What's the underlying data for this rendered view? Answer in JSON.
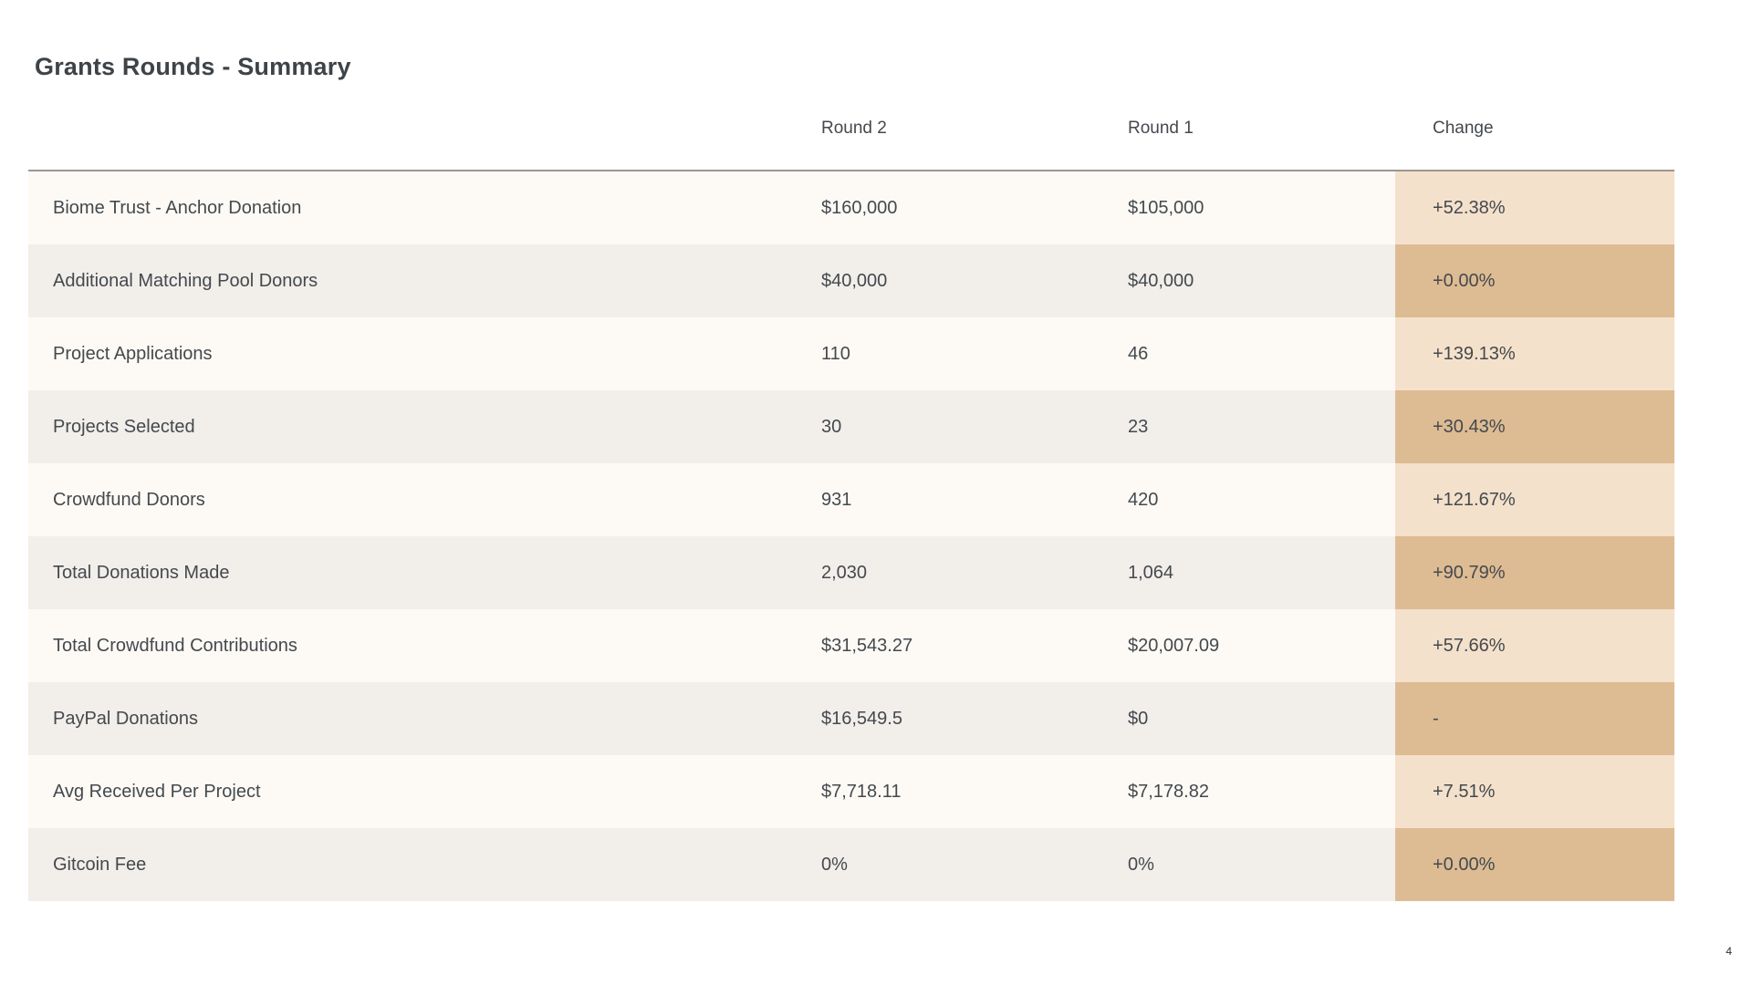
{
  "page": {
    "title": "Grants Rounds - Summary",
    "page_number": "4"
  },
  "table": {
    "headers": [
      "Round 2",
      "Round 1",
      "Change"
    ],
    "rows": [
      {
        "label": "Biome Trust - Anchor Donation",
        "round2": "$160,000",
        "round1": "$105,000",
        "change": "+52.38%"
      },
      {
        "label": "Additional Matching Pool Donors",
        "round2": "$40,000",
        "round1": "$40,000",
        "change": "+0.00%"
      },
      {
        "label": "Project Applications",
        "round2": "110",
        "round1": "46",
        "change": "+139.13%"
      },
      {
        "label": "Projects Selected",
        "round2": "30",
        "round1": "23",
        "change": "+30.43%"
      },
      {
        "label": "Crowdfund Donors",
        "round2": "931",
        "round1": "420",
        "change": "+121.67%"
      },
      {
        "label": "Total Donations Made",
        "round2": "2,030",
        "round1": "1,064",
        "change": "+90.79%"
      },
      {
        "label": "Total Crowdfund Contributions",
        "round2": "$31,543.27",
        "round1": "$20,007.09",
        "change": "+57.66%"
      },
      {
        "label": "PayPal Donations",
        "round2": "$16,549.5",
        "round1": "$0",
        "change": "-"
      },
      {
        "label": "Avg Received Per Project",
        "round2": "$7,718.11",
        "round1": "$7,178.82",
        "change": "+7.51%"
      },
      {
        "label": "Gitcoin Fee",
        "round2": "0%",
        "round1": "0%",
        "change": "+0.00%"
      }
    ]
  },
  "colors": {
    "row_odd_bg": "#fdfaf5",
    "row_even_bg": "#f2eeea",
    "change_odd_bg": "#f4e1cb",
    "change_even_bg": "#ddbb93",
    "header_rule": "#9a9793",
    "text": "#44494e"
  }
}
